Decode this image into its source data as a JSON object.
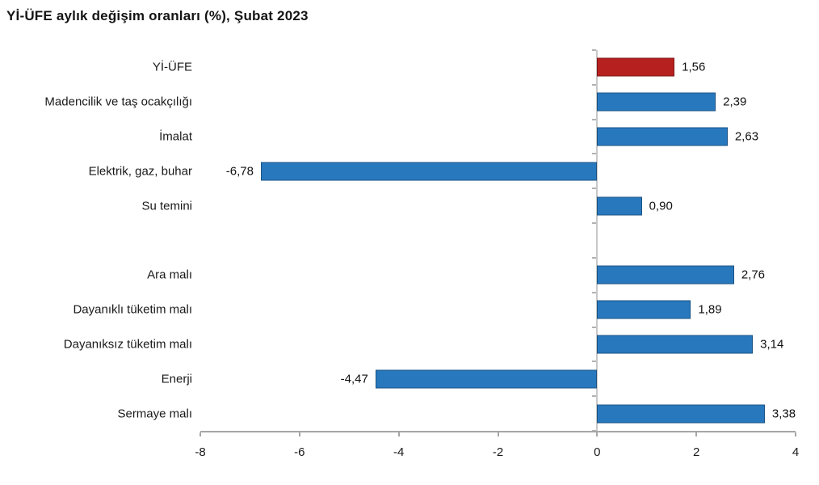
{
  "chart_data": {
    "type": "bar",
    "orientation": "horizontal",
    "title": "Yİ-ÜFE aylık değişim oranları (%), Şubat 2023",
    "categories": [
      "Yİ-ÜFE",
      "Madencilik ve taş ocakçılığı",
      "İmalat",
      "Elektrik, gaz, buhar",
      "Su temini",
      "",
      "Ara malı",
      "Dayanıklı tüketim malı",
      "Dayanıksız tüketim malı",
      "Enerji",
      "Sermaye malı"
    ],
    "values": [
      1.56,
      2.39,
      2.63,
      -6.78,
      0.9,
      null,
      2.76,
      1.89,
      3.14,
      -4.47,
      3.38
    ],
    "value_labels": [
      "1,56",
      "2,39",
      "2,63",
      "-6,78",
      "0,90",
      "",
      "2,76",
      "1,89",
      "3,14",
      "-4,47",
      "3,38"
    ],
    "bar_colors": [
      "#b6201f",
      "#2878be",
      "#2878be",
      "#2878be",
      "#2878be",
      null,
      "#2878be",
      "#2878be",
      "#2878be",
      "#2878be",
      "#2878be"
    ],
    "xlabel": "",
    "ylabel": "",
    "xlim": [
      -8,
      4
    ],
    "x_ticks": [
      "-8",
      "-6",
      "-4",
      "-2",
      "0",
      "2",
      "4"
    ],
    "grid": false,
    "legend": "none",
    "colors": {
      "default_bar": "#2878be",
      "highlight_bar": "#b6201f",
      "x_axis": "#a6a6a6",
      "zero_axis": "#c8c8c8",
      "zero_axis_tick": "#b2b2b2",
      "text": "#141414",
      "background": "#ffffff"
    }
  }
}
